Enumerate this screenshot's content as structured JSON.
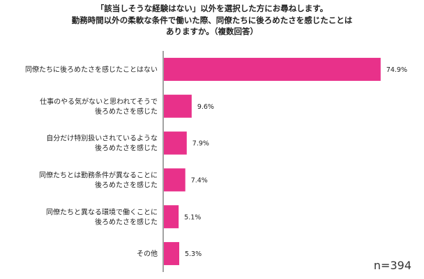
{
  "title": {
    "lines": [
      "「該当しそうな経験はない」以外を選択した方にお尋ねします。",
      "勤務時間以外の柔軟な条件で働いた際、同僚たちに後ろめたさを感じたことは",
      "ありますか。（複数回答）"
    ]
  },
  "note": "n=394",
  "colors": {
    "bar": "#e8318a",
    "axis": "#444444"
  },
  "chart_data": {
    "type": "bar",
    "orientation": "horizontal",
    "categories": [
      [
        "同僚たちに後ろめたさを感じたことはない"
      ],
      [
        "仕事のやる気がないと思われてそうで",
        "後ろめたさを感じた"
      ],
      [
        "自分だけ特別扱いされているような",
        "後ろめたさを感じた"
      ],
      [
        "同僚たちとは勤務条件が異なることに",
        "後ろめたさを感じた"
      ],
      [
        "同僚たちと異なる環境で働くことに",
        "後ろめたさを感じた"
      ],
      [
        "その他"
      ]
    ],
    "values": [
      74.9,
      9.6,
      7.9,
      7.4,
      5.1,
      5.3
    ],
    "value_labels": [
      "74.9%",
      "9.6%",
      "7.9%",
      "7.4%",
      "5.1%",
      "5.3%"
    ],
    "xlim": [
      0,
      80
    ],
    "grid": false
  }
}
